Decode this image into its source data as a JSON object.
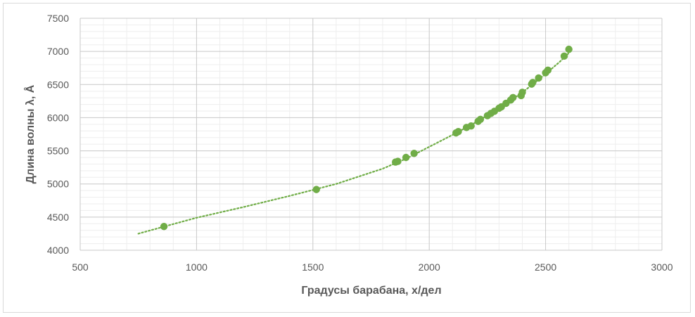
{
  "chart_data": {
    "type": "scatter",
    "xlabel": "Градусы барабана, x/дел",
    "ylabel": "Длина волны λ, Å",
    "xlim": [
      500,
      3000
    ],
    "ylim": [
      4000,
      7500
    ],
    "x_ticks": [
      "500",
      "1000",
      "1500",
      "2000",
      "2500",
      "3000"
    ],
    "y_ticks": [
      "4000",
      "4500",
      "5000",
      "5500",
      "6000",
      "6500",
      "7000",
      "7500"
    ],
    "grid": true,
    "legend": "none",
    "marker_color": "#70ad47",
    "series": [
      {
        "points": [
          {
            "x": 860,
            "y": 4358
          },
          {
            "x": 1515,
            "y": 4916
          },
          {
            "x": 1855,
            "y": 5330
          },
          {
            "x": 1865,
            "y": 5341
          },
          {
            "x": 1900,
            "y": 5400
          },
          {
            "x": 1935,
            "y": 5461
          },
          {
            "x": 2115,
            "y": 5770
          },
          {
            "x": 2125,
            "y": 5790
          },
          {
            "x": 2160,
            "y": 5852
          },
          {
            "x": 2180,
            "y": 5875
          },
          {
            "x": 2210,
            "y": 5945
          },
          {
            "x": 2220,
            "y": 5975
          },
          {
            "x": 2250,
            "y": 6030
          },
          {
            "x": 2265,
            "y": 6065
          },
          {
            "x": 2280,
            "y": 6096
          },
          {
            "x": 2300,
            "y": 6143
          },
          {
            "x": 2310,
            "y": 6164
          },
          {
            "x": 2330,
            "y": 6217
          },
          {
            "x": 2350,
            "y": 6266
          },
          {
            "x": 2360,
            "y": 6304
          },
          {
            "x": 2395,
            "y": 6334
          },
          {
            "x": 2400,
            "y": 6383
          },
          {
            "x": 2440,
            "y": 6507
          },
          {
            "x": 2445,
            "y": 6532
          },
          {
            "x": 2470,
            "y": 6599
          },
          {
            "x": 2500,
            "y": 6678
          },
          {
            "x": 2510,
            "y": 6717
          },
          {
            "x": 2580,
            "y": 6929
          },
          {
            "x": 2600,
            "y": 7032
          }
        ]
      }
    ],
    "trendline": {
      "style": "dotted",
      "color": "#70ad47",
      "x_range": [
        750,
        2610
      ],
      "points": [
        {
          "x": 750,
          "y": 4250
        },
        {
          "x": 900,
          "y": 4395
        },
        {
          "x": 1000,
          "y": 4490
        },
        {
          "x": 1200,
          "y": 4650
        },
        {
          "x": 1400,
          "y": 4820
        },
        {
          "x": 1600,
          "y": 5000
        },
        {
          "x": 1800,
          "y": 5230
        },
        {
          "x": 1900,
          "y": 5380
        },
        {
          "x": 2000,
          "y": 5560
        },
        {
          "x": 2100,
          "y": 5740
        },
        {
          "x": 2200,
          "y": 5930
        },
        {
          "x": 2300,
          "y": 6140
        },
        {
          "x": 2400,
          "y": 6380
        },
        {
          "x": 2500,
          "y": 6660
        },
        {
          "x": 2560,
          "y": 6840
        },
        {
          "x": 2610,
          "y": 7010
        }
      ]
    }
  }
}
